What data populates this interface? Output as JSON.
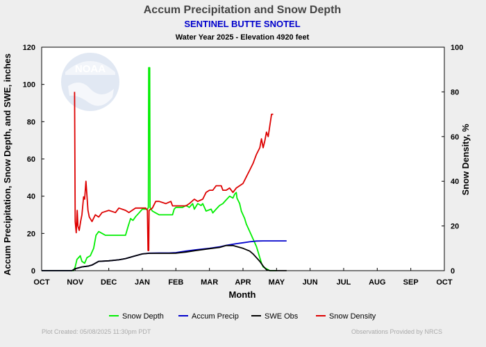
{
  "chart_data": {
    "type": "line",
    "title": "Accum Precipitation and Snow Depth",
    "subtitle": "SENTINEL BUTTE SNOTEL",
    "info": "Water Year 2025 -  Elevation 4920 feet",
    "xlabel": "Month",
    "ylabel": "Accum Precipitation, Snow Depth, and SWE, inches",
    "y2label": "Snow Density, %",
    "categories": [
      "OCT",
      "NOV",
      "DEC",
      "JAN",
      "FEB",
      "MAR",
      "APR",
      "MAY",
      "JUN",
      "JUL",
      "AUG",
      "SEP",
      "OCT"
    ],
    "ylim": [
      0,
      120
    ],
    "yticks": [
      0,
      20,
      40,
      60,
      80,
      100,
      120
    ],
    "y2lim": [
      0,
      100
    ],
    "y2ticks": [
      0,
      20,
      40,
      60,
      80,
      100
    ],
    "grid": false,
    "legend_position": "bottom",
    "watermark_text": "NOAA",
    "series": [
      {
        "name": "Snow Depth",
        "color": "#00ee00",
        "axis": "left",
        "points": [
          [
            0,
            0
          ],
          [
            0.95,
            0
          ],
          [
            1.0,
            2
          ],
          [
            1.05,
            6
          ],
          [
            1.15,
            8
          ],
          [
            1.2,
            5
          ],
          [
            1.28,
            4
          ],
          [
            1.35,
            7
          ],
          [
            1.45,
            8
          ],
          [
            1.55,
            12
          ],
          [
            1.62,
            19
          ],
          [
            1.7,
            21
          ],
          [
            1.8,
            20
          ],
          [
            1.9,
            19
          ],
          [
            2.0,
            19
          ],
          [
            2.2,
            19
          ],
          [
            2.4,
            19
          ],
          [
            2.5,
            19
          ],
          [
            2.58,
            24
          ],
          [
            2.65,
            28
          ],
          [
            2.72,
            27
          ],
          [
            2.8,
            29
          ],
          [
            2.9,
            31
          ],
          [
            3.0,
            33
          ],
          [
            3.1,
            33
          ],
          [
            3.15,
            33
          ],
          [
            3.18,
            34
          ],
          [
            3.19,
            109
          ],
          [
            3.22,
            109
          ],
          [
            3.23,
            34
          ],
          [
            3.3,
            32
          ],
          [
            3.4,
            31
          ],
          [
            3.5,
            30
          ],
          [
            3.7,
            30
          ],
          [
            3.9,
            30
          ],
          [
            3.95,
            33
          ],
          [
            4.0,
            34
          ],
          [
            4.2,
            34
          ],
          [
            4.3,
            35
          ],
          [
            4.4,
            34
          ],
          [
            4.5,
            36
          ],
          [
            4.55,
            33
          ],
          [
            4.65,
            36
          ],
          [
            4.75,
            35
          ],
          [
            4.8,
            36
          ],
          [
            4.9,
            32
          ],
          [
            5.05,
            33
          ],
          [
            5.1,
            31
          ],
          [
            5.2,
            33
          ],
          [
            5.3,
            35
          ],
          [
            5.4,
            36
          ],
          [
            5.5,
            38
          ],
          [
            5.6,
            40
          ],
          [
            5.7,
            39
          ],
          [
            5.75,
            41
          ],
          [
            5.8,
            42
          ],
          [
            5.82,
            39
          ],
          [
            5.9,
            36
          ],
          [
            5.95,
            32
          ],
          [
            6.0,
            30
          ],
          [
            6.05,
            28
          ],
          [
            6.1,
            25
          ],
          [
            6.2,
            21
          ],
          [
            6.3,
            17
          ],
          [
            6.4,
            13
          ],
          [
            6.45,
            10
          ],
          [
            6.5,
            7
          ],
          [
            6.55,
            4
          ],
          [
            6.6,
            2
          ],
          [
            6.7,
            1
          ],
          [
            6.8,
            0
          ],
          [
            7.0,
            0
          ]
        ]
      },
      {
        "name": "Accum Precip",
        "color": "#0000cc",
        "axis": "left",
        "points": [
          [
            0,
            0
          ],
          [
            0.9,
            0
          ],
          [
            1.0,
            1
          ],
          [
            1.2,
            2
          ],
          [
            1.4,
            2.5
          ],
          [
            1.5,
            3
          ],
          [
            1.7,
            5
          ],
          [
            2.0,
            5.3
          ],
          [
            2.3,
            5.8
          ],
          [
            2.5,
            6.5
          ],
          [
            2.8,
            8
          ],
          [
            3.0,
            9
          ],
          [
            3.2,
            9.4
          ],
          [
            3.5,
            9.5
          ],
          [
            3.8,
            9.5
          ],
          [
            4.0,
            9.7
          ],
          [
            4.3,
            10.5
          ],
          [
            4.6,
            11.2
          ],
          [
            5.0,
            12
          ],
          [
            5.3,
            12.8
          ],
          [
            5.5,
            13.6
          ],
          [
            5.8,
            14.5
          ],
          [
            6.0,
            15
          ],
          [
            6.2,
            15.5
          ],
          [
            6.4,
            15.9
          ],
          [
            6.6,
            16
          ],
          [
            7.0,
            16
          ],
          [
            7.3,
            16
          ]
        ]
      },
      {
        "name": "SWE Obs",
        "color": "#000000",
        "axis": "left",
        "points": [
          [
            0,
            0
          ],
          [
            0.9,
            0
          ],
          [
            1.0,
            1
          ],
          [
            1.2,
            2
          ],
          [
            1.4,
            2.5
          ],
          [
            1.5,
            3
          ],
          [
            1.7,
            5
          ],
          [
            2.0,
            5.3
          ],
          [
            2.3,
            5.8
          ],
          [
            2.5,
            6.5
          ],
          [
            2.8,
            8
          ],
          [
            3.0,
            9
          ],
          [
            3.2,
            9.3
          ],
          [
            3.5,
            9.3
          ],
          [
            3.8,
            9.3
          ],
          [
            4.0,
            9.4
          ],
          [
            4.3,
            10
          ],
          [
            4.6,
            10.8
          ],
          [
            5.0,
            11.8
          ],
          [
            5.3,
            12.5
          ],
          [
            5.5,
            13.5
          ],
          [
            5.7,
            13.5
          ],
          [
            5.8,
            13
          ],
          [
            6.0,
            12
          ],
          [
            6.2,
            10.5
          ],
          [
            6.3,
            9
          ],
          [
            6.4,
            7
          ],
          [
            6.5,
            5
          ],
          [
            6.6,
            2.5
          ],
          [
            6.7,
            0.5
          ],
          [
            6.8,
            0
          ],
          [
            7.0,
            0
          ],
          [
            7.3,
            0
          ]
        ]
      },
      {
        "name": "Snow Density",
        "color": "#dd0000",
        "axis": "right",
        "points": [
          [
            0.98,
            80
          ],
          [
            1.0,
            22
          ],
          [
            1.03,
            17
          ],
          [
            1.06,
            27
          ],
          [
            1.08,
            20
          ],
          [
            1.12,
            18
          ],
          [
            1.16,
            22
          ],
          [
            1.2,
            25
          ],
          [
            1.25,
            33
          ],
          [
            1.28,
            32
          ],
          [
            1.32,
            40
          ],
          [
            1.38,
            27
          ],
          [
            1.42,
            24
          ],
          [
            1.5,
            22
          ],
          [
            1.6,
            25
          ],
          [
            1.7,
            24
          ],
          [
            1.8,
            26
          ],
          [
            2.0,
            27
          ],
          [
            2.2,
            26
          ],
          [
            2.3,
            28
          ],
          [
            2.5,
            27
          ],
          [
            2.6,
            26
          ],
          [
            2.8,
            28
          ],
          [
            3.0,
            28
          ],
          [
            3.1,
            28
          ],
          [
            3.15,
            27
          ],
          [
            3.17,
            9
          ],
          [
            3.19,
            9
          ],
          [
            3.2,
            27
          ],
          [
            3.3,
            28
          ],
          [
            3.4,
            31
          ],
          [
            3.5,
            31
          ],
          [
            3.7,
            30
          ],
          [
            3.85,
            31
          ],
          [
            3.9,
            29
          ],
          [
            4.0,
            29
          ],
          [
            4.3,
            29
          ],
          [
            4.4,
            30
          ],
          [
            4.55,
            32
          ],
          [
            4.65,
            31
          ],
          [
            4.8,
            32
          ],
          [
            4.9,
            35
          ],
          [
            5.0,
            36
          ],
          [
            5.1,
            36
          ],
          [
            5.2,
            38
          ],
          [
            5.35,
            38
          ],
          [
            5.4,
            36
          ],
          [
            5.5,
            36
          ],
          [
            5.6,
            37
          ],
          [
            5.7,
            35
          ],
          [
            5.8,
            37
          ],
          [
            5.9,
            38
          ],
          [
            6.0,
            39
          ],
          [
            6.1,
            42
          ],
          [
            6.2,
            45
          ],
          [
            6.3,
            48
          ],
          [
            6.4,
            52
          ],
          [
            6.5,
            55
          ],
          [
            6.55,
            59
          ],
          [
            6.6,
            55
          ],
          [
            6.65,
            58
          ],
          [
            6.7,
            62
          ],
          [
            6.75,
            60
          ],
          [
            6.8,
            65
          ],
          [
            6.85,
            70
          ],
          [
            6.9,
            70
          ]
        ]
      }
    ]
  },
  "footer": {
    "left": "Plot Created: 05/08/2025 11:30pm PDT",
    "right": "Observations Provided by NRCS"
  }
}
